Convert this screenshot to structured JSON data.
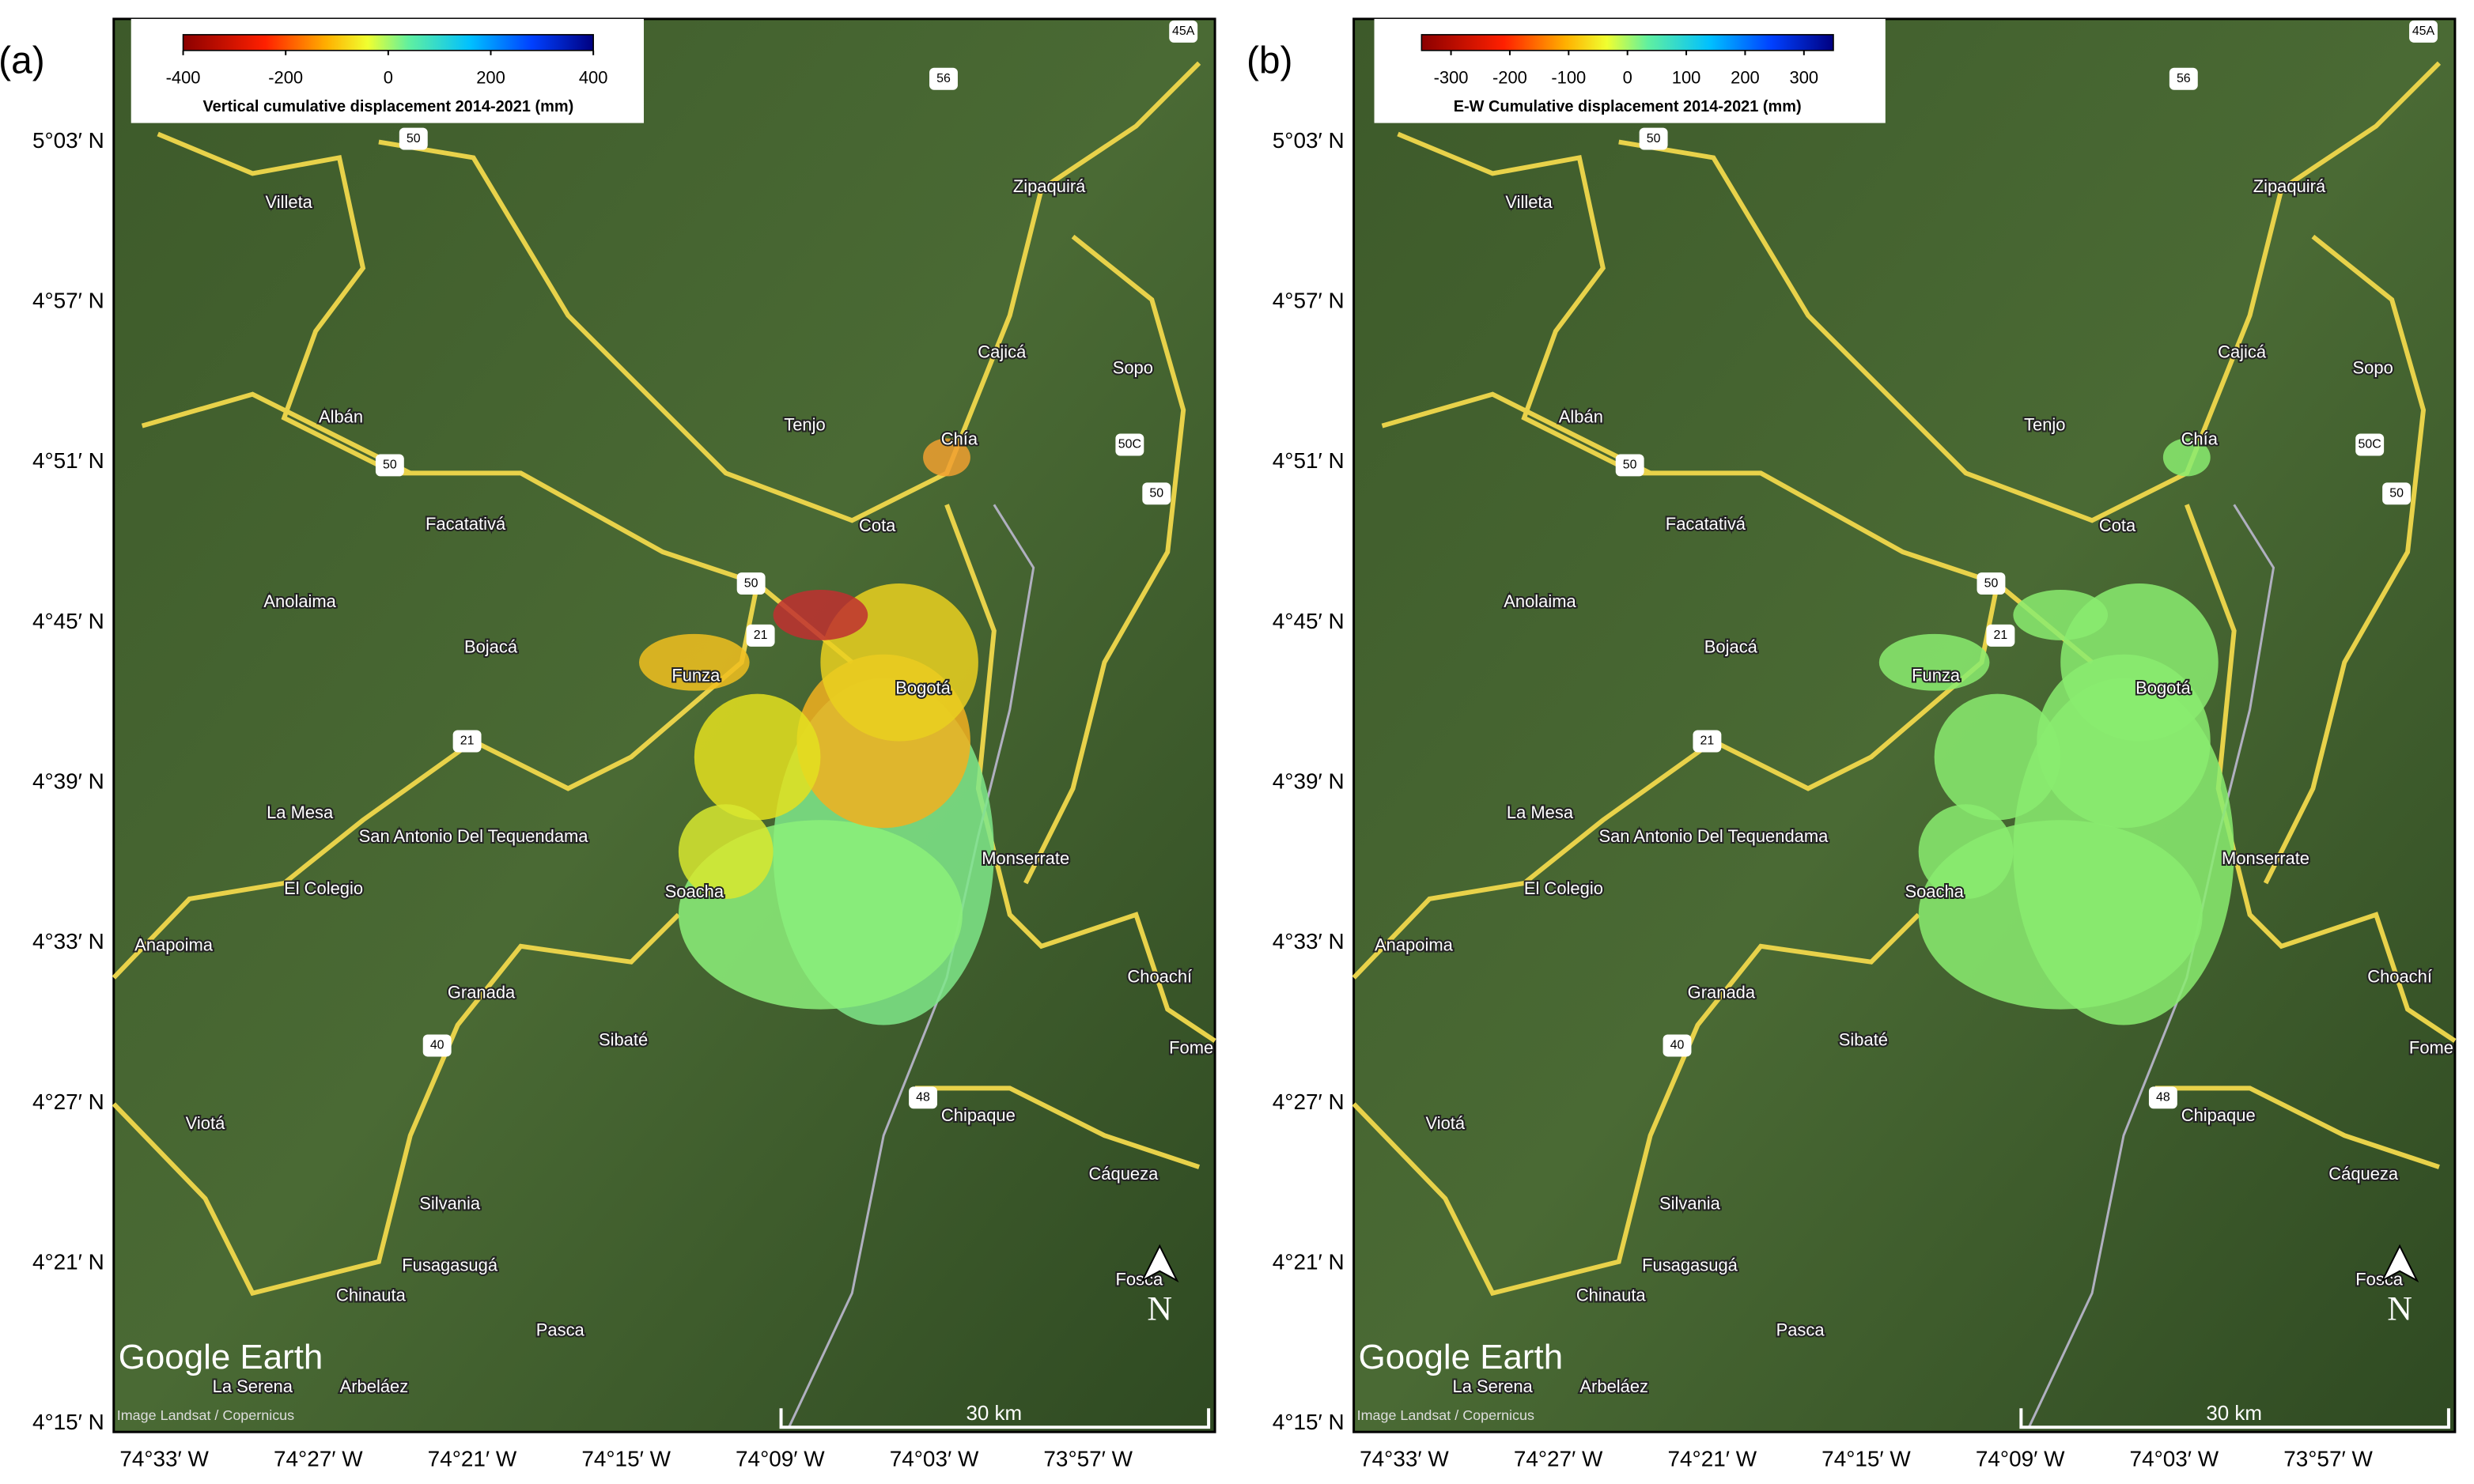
{
  "panels": [
    {
      "label": "(a)",
      "colorbar": {
        "title": "Vertical cumulative displacement 2014-2021 (mm)",
        "lim": [
          -400,
          400
        ],
        "ticks": [
          -400,
          -200,
          0,
          200,
          400
        ]
      }
    },
    {
      "label": "(b)",
      "colorbar": {
        "title": "E-W Cumulative displacement 2014-2021 (mm)",
        "lim": [
          -350,
          350
        ],
        "ticks": [
          -300,
          -200,
          -100,
          0,
          100,
          200,
          300
        ]
      }
    }
  ],
  "lat_ticks": [
    "5°03′ N",
    "4°57′ N",
    "4°51′ N",
    "4°45′ N",
    "4°39′ N",
    "4°33′ N",
    "4°27′ N",
    "4°21′ N",
    "4°15′ N"
  ],
  "lon_ticks": [
    "74°33′ W",
    "74°27′ W",
    "74°21′ W",
    "74°15′ W",
    "74°09′ W",
    "74°03′ W",
    "73°57′ W"
  ],
  "places": [
    "Villeta",
    "Zipaquirá",
    "Cajicá",
    "Sopo",
    "Albán",
    "Tenjo",
    "Chía",
    "Facatativá",
    "Cota",
    "Anolaima",
    "Bojacá",
    "Funza",
    "Bogotá",
    "La Mesa",
    "San Antonio Del Tequendama",
    "Monserrate",
    "El Colegio",
    "Soacha",
    "Anapoima",
    "Choachí",
    "Granada",
    "Sibaté",
    "Fome",
    "Viotá",
    "Chipaque",
    "Cáqueza",
    "Silvania",
    "Fusagasugá",
    "Fosca",
    "Chinauta",
    "Pasca",
    "La Serena",
    "Arbeláez"
  ],
  "road_labels": [
    "45A",
    "56",
    "50",
    "50",
    "50",
    "21",
    "21",
    "40",
    "48",
    "50C",
    "50"
  ],
  "scale_bar": "30 km",
  "north": "N",
  "watermark": "Google Earth",
  "credit": "Image Landsat / Copernicus"
}
